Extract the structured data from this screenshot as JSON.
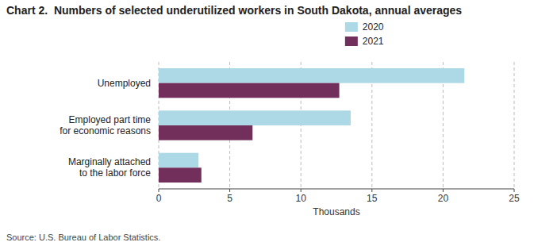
{
  "chart_data": {
    "type": "bar",
    "orientation": "horizontal",
    "title": "Chart 2.  Numbers of selected underutilized workers in South Dakota, annual averages",
    "categories": [
      "Marginally attached\nto the labor force",
      "Employed part time\nfor economic reasons",
      "Unemployed"
    ],
    "series": [
      {
        "name": "2020",
        "color": "#add8e6",
        "values": [
          2.8,
          13.5,
          21.5
        ]
      },
      {
        "name": "2021",
        "color": "#722f5b",
        "values": [
          3.0,
          6.6,
          12.7
        ]
      }
    ],
    "xlabel": "Thousands",
    "xlim": [
      0,
      25
    ],
    "xticks": [
      0,
      5,
      10,
      15,
      20,
      25
    ],
    "grid": true,
    "legend": "top",
    "source": "Source: U.S. Bureau of Labor Statistics."
  }
}
